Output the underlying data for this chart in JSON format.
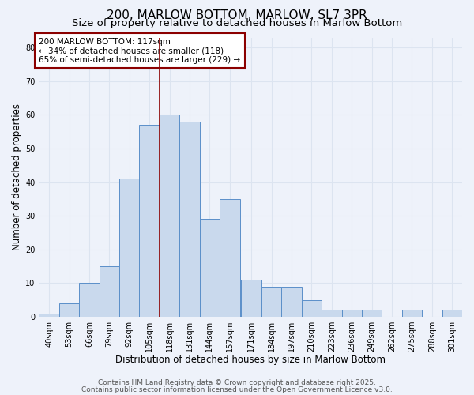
{
  "title1": "200, MARLOW BOTTOM, MARLOW, SL7 3PR",
  "title2": "Size of property relative to detached houses in Marlow Bottom",
  "xlabel": "Distribution of detached houses by size in Marlow Bottom",
  "ylabel": "Number of detached properties",
  "bin_labels": [
    "40sqm",
    "53sqm",
    "66sqm",
    "79sqm",
    "92sqm",
    "105sqm",
    "118sqm",
    "131sqm",
    "144sqm",
    "157sqm",
    "171sqm",
    "184sqm",
    "197sqm",
    "210sqm",
    "223sqm",
    "236sqm",
    "249sqm",
    "262sqm",
    "275sqm",
    "288sqm",
    "301sqm"
  ],
  "bin_edges": [
    40,
    53,
    66,
    79,
    92,
    105,
    118,
    131,
    144,
    157,
    171,
    184,
    197,
    210,
    223,
    236,
    249,
    262,
    275,
    288,
    301
  ],
  "bar_heights": [
    1,
    4,
    10,
    15,
    41,
    57,
    60,
    58,
    29,
    35,
    11,
    9,
    9,
    5,
    2,
    2,
    2,
    0,
    2,
    0,
    2
  ],
  "bar_color": "#c9d9ed",
  "bar_edge_color": "#5b8fc9",
  "grid_color": "#dce4f0",
  "bg_color": "#eef2fa",
  "vline_x": 118,
  "vline_color": "#8B0000",
  "annotation_text": "200 MARLOW BOTTOM: 117sqm\n← 34% of detached houses are smaller (118)\n65% of semi-detached houses are larger (229) →",
  "annotation_box_color": "#ffffff",
  "annotation_border_color": "#8B0000",
  "ylim": [
    0,
    83
  ],
  "yticks": [
    0,
    10,
    20,
    30,
    40,
    50,
    60,
    70,
    80
  ],
  "footer1": "Contains HM Land Registry data © Crown copyright and database right 2025.",
  "footer2": "Contains public sector information licensed under the Open Government Licence v3.0.",
  "title1_fontsize": 11,
  "title2_fontsize": 9.5,
  "xlabel_fontsize": 8.5,
  "ylabel_fontsize": 8.5,
  "tick_fontsize": 7,
  "footer_fontsize": 6.5,
  "annotation_fontsize": 7.5
}
